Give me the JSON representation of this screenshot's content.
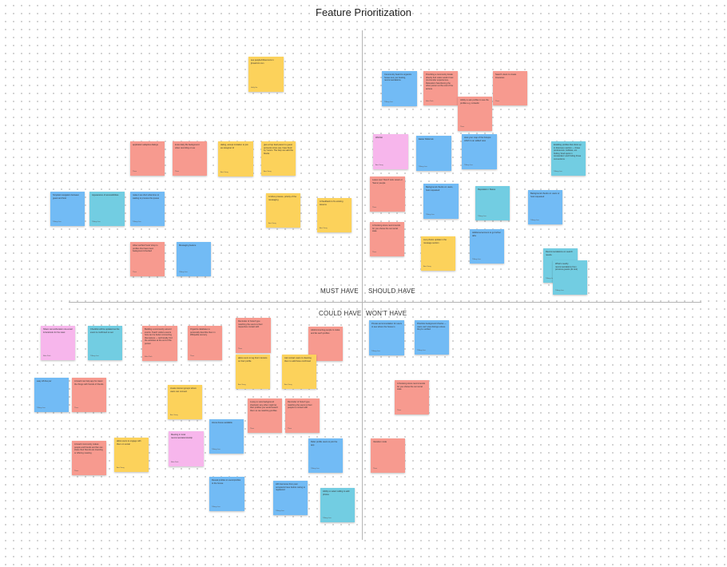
{
  "board": {
    "title": "Feature Prioritization",
    "quadrants": {
      "must_have": "MUST HAVE",
      "should_have": "SHOULD HAVE",
      "could_have": "COULD HAVE",
      "wont_have": "WON'T HAVE"
    }
  },
  "colors": {
    "blue": "#72bbf5",
    "red": "#f79a8f",
    "yellow": "#fcd25b",
    "pink": "#f7b6ec",
    "teal": "#72cde2"
  },
  "stickies": [
    {
      "color": "yellow",
      "text": "see people/influencers in jbmail.biz.com",
      "author": "Holly Ha"
    },
    {
      "color": "red",
      "text": "application adaptive dialogs",
      "author": "Thea"
    },
    {
      "color": "red",
      "text": "know daily life background when recording on ea",
      "author": "Thea"
    },
    {
      "color": "yellow",
      "text": "dating, accept invitation to join as caregiver id",
      "author": "Ana Song"
    },
    {
      "color": "yellow",
      "text": "give a hop feed parent to guest accounts since use, have fixed by Yuna's. The help can add the blocks",
      "author": "Ana Song"
    },
    {
      "color": "blue",
      "text": "Simplest navigation between guest and host",
      "author": "Tiffany Lee"
    },
    {
      "color": "teal",
      "text": "Appearance of accessibilities",
      "author": "Tiffany Lee"
    },
    {
      "color": "blue",
      "text": "make it as short what time to waiting to process the queue",
      "author": "Tiffany Lee"
    },
    {
      "color": "yellow",
      "text": "AI drive process, priority of the messaging",
      "author": "Ana Song"
    },
    {
      "color": "yellow",
      "text": "AI feedback to fix existing lessons",
      "author": "Ana Song"
    },
    {
      "color": "red",
      "text": "Allow verified 'local' shop to profiles that have been background checked",
      "author": "Thea"
    },
    {
      "color": "blue",
      "text": "Messaging feature",
      "author": "Tiffany Lee"
    },
    {
      "color": "blue",
      "text": "Community board to organize house tour, pet hosting, recommendations",
      "author": "Tiffany Lee"
    },
    {
      "color": "red",
      "text": "Providing a community locale directly find visitor and/or host (co-founder experiences, Relocation Sanctioning the other person at the end of the access",
      "author": "Bobi Park"
    },
    {
      "color": "red",
      "text": "Ability to ask profiles to see the profiles e.g. Linkedin",
      "author": "Thea"
    },
    {
      "color": "red",
      "text": "Search views to create itineraries",
      "author": "Thea"
    },
    {
      "color": "pink",
      "text": "Wishlist",
      "author": "Ana Song"
    },
    {
      "color": "blue",
      "text": "Easier Referrals",
      "author": "Tiffany Lee"
    },
    {
      "color": "blue",
      "text": "Host your map of the hotspot which to an added view",
      "author": "Tiffany Lee"
    },
    {
      "color": "teal",
      "text": "Enabling profiles that show up in discovery section — those preferences, hobbies, etc finding 'food spots in Amsterdam' and finding those connections",
      "author": "Tiffany Lee"
    },
    {
      "color": "red",
      "text": "Leave user 'friend' rank view/s or 'Same' people",
      "author": "Thea"
    },
    {
      "color": "blue",
      "text": "Background checks on users, host requested",
      "author": "Tiffany Lee"
    },
    {
      "color": "teal",
      "text": "Reputation / Status",
      "author": "Tiffany Lee"
    },
    {
      "color": "blue",
      "text": "Background checks on users or host requested",
      "author": "Tiffany Lee"
    },
    {
      "color": "red",
      "text": "AI booking stone recommends for you shows the car rental state",
      "author": "Thea"
    },
    {
      "color": "yellow",
      "text": "Live photos update in the message section",
      "author": "Ana Song"
    },
    {
      "color": "blue",
      "text": "Additional account to go further tabs",
      "author": "Tiffany Lee"
    },
    {
      "color": "teal",
      "text": "Recommendations on search results",
      "author": "Tiffany Lee"
    },
    {
      "color": "teal",
      "text": "What's nearby recommendations from previous guests (AI tool)",
      "author": "Tiffany Lee"
    },
    {
      "color": "pink",
      "text": "Share via text/location via email & facebook for the toast",
      "author": "Bobi Park"
    },
    {
      "color": "teal",
      "text": "Checklist will be updated as the event is confirmed so set",
      "author": "Tiffany Lee"
    },
    {
      "color": "red",
      "text": "Building a community around events. Teach visitors events how can be better connecting themselves — technically, find the activities at the end of the person",
      "author": "Bobi Park"
    },
    {
      "color": "red",
      "text": "Organize database to personally describe them in Wikipedia scenery.",
      "author": "Thea"
    },
    {
      "color": "red",
      "text": "Reminder of 'Hotel' type matching the users to their respective contact with",
      "author": "Thea"
    },
    {
      "color": "red",
      "text": "Add/connecting people to make and far each profiles",
      "author": "Thea"
    },
    {
      "color": "blue",
      "text": "Private accommodation for users to see where the house is",
      "author": "Tiffany Lee"
    },
    {
      "color": "blue",
      "text": "Prioritize background checks — users can't view listings unless they're verified",
      "author": "Tiffany Lee"
    },
    {
      "color": "yellow",
      "text": "allow users to tag their interests on their profile",
      "author": "Ana Song"
    },
    {
      "color": "yellow",
      "text": "Ask contact users to cleaning them to add those confirmed",
      "author": "Ana Song"
    },
    {
      "color": "blue",
      "text": "easy off-line per",
      "author": "Tiffany Lee"
    },
    {
      "color": "red",
      "text": "A board can help app for travel the things with friends of friends",
      "author": "Thea"
    },
    {
      "color": "yellow",
      "text": "create interest groups where users can connect",
      "author": "Ana Song"
    },
    {
      "color": "red",
      "text": "A way to view background checks/or any other might let their profiles you would search them so we matching profiles",
      "author": "Thea"
    },
    {
      "color": "red",
      "text": "Reminder of 'Hotel' type matching the users to their people to contact with",
      "author": "Thea"
    },
    {
      "color": "red",
      "text": "AI booking stone recommends for you shows the car rental state",
      "author": "Thea"
    },
    {
      "color": "pink",
      "text": "Meeting in local recommendation/tooltip",
      "author": "Bobi Park"
    },
    {
      "color": "blue",
      "text": "Home-house available",
      "author": "Tiffany Lee"
    },
    {
      "color": "red",
      "text": "A board community makes people and friends and fan can share their friends are traveling or offering meeting",
      "author": "Thea"
    },
    {
      "color": "yellow",
      "text": "allow users to engage with them on social",
      "author": "Ana Song"
    },
    {
      "color": "blue",
      "text": "Refer profile users to join the app",
      "author": "Tiffany Lee"
    },
    {
      "color": "red",
      "text": "Vacation mode",
      "author": "Thea"
    },
    {
      "color": "blue",
      "text": "Reveal profiles to users/profiles to the house",
      "author": "Tiffany Lee"
    },
    {
      "color": "blue",
      "text": "HR interviews from past occupants have before caring to registered",
      "author": "Tiffany Lee"
    },
    {
      "color": "teal",
      "text": "Ability to select calling to add photos",
      "author": "Tiffany Lee"
    }
  ]
}
